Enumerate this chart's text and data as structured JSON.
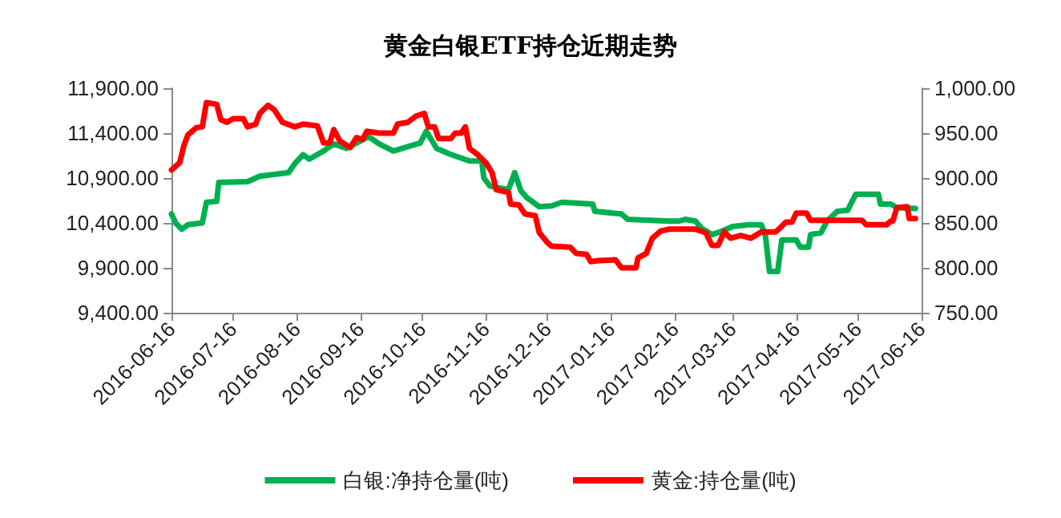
{
  "chart_data": {
    "type": "line",
    "title": "黄金白银ETF持仓近期走势",
    "series": [
      {
        "name": "白银:净持仓量(吨)",
        "color": "#00b050",
        "axis": "y",
        "x": [
          "2016-06-16",
          "2016-06-18",
          "2016-06-21",
          "2016-06-24",
          "2016-07-01",
          "2016-07-03",
          "2016-07-08",
          "2016-07-09",
          "2016-07-23",
          "2016-07-29",
          "2016-08-05",
          "2016-08-12",
          "2016-08-15",
          "2016-08-19",
          "2016-08-22",
          "2016-08-29",
          "2016-09-03",
          "2016-09-09",
          "2016-09-14",
          "2016-09-20",
          "2016-09-25",
          "2016-10-02",
          "2016-10-09",
          "2016-10-15",
          "2016-10-18",
          "2016-10-23",
          "2016-10-29",
          "2016-11-08",
          "2016-11-14",
          "2016-11-15",
          "2016-11-18",
          "2016-11-27",
          "2016-11-30",
          "2016-12-03",
          "2016-12-06",
          "2016-12-12",
          "2016-12-18",
          "2016-12-23",
          "2017-01-07",
          "2017-01-08",
          "2017-01-21",
          "2017-01-24",
          "2017-02-13",
          "2017-02-18",
          "2017-02-21",
          "2017-02-26",
          "2017-03-01",
          "2017-03-06",
          "2017-03-10",
          "2017-03-16",
          "2017-03-24",
          "2017-03-30",
          "2017-04-01",
          "2017-04-03",
          "2017-04-07",
          "2017-04-09",
          "2017-04-16",
          "2017-04-18",
          "2017-04-22",
          "2017-04-23",
          "2017-04-28",
          "2017-05-01",
          "2017-05-06",
          "2017-05-11",
          "2017-05-15",
          "2017-05-26",
          "2017-05-27",
          "2017-06-01",
          "2017-06-04",
          "2017-06-13"
        ],
        "values": [
          10500,
          10400,
          10330,
          10380,
          10400,
          10630,
          10640,
          10850,
          10860,
          10920,
          10940,
          10960,
          11060,
          11160,
          11110,
          11200,
          11280,
          11230,
          11290,
          11360,
          11280,
          11200,
          11250,
          11290,
          11420,
          11230,
          11170,
          11090,
          11090,
          10900,
          10810,
          10770,
          10960,
          10760,
          10680,
          10580,
          10590,
          10630,
          10610,
          10530,
          10500,
          10440,
          10420,
          10420,
          10440,
          10420,
          10340,
          10270,
          10300,
          10360,
          10380,
          10380,
          10260,
          9860,
          9860,
          10210,
          10210,
          10130,
          10130,
          10270,
          10290,
          10420,
          10530,
          10540,
          10720,
          10720,
          10610,
          10610,
          10570,
          10560
        ]
      },
      {
        "name": "黄金:持仓量(吨)",
        "color": "#ff0000",
        "axis": "y2",
        "x": [
          "2016-06-16",
          "2016-06-20",
          "2016-06-22",
          "2016-06-24",
          "2016-06-28",
          "2016-07-01",
          "2016-07-03",
          "2016-07-08",
          "2016-07-10",
          "2016-07-13",
          "2016-07-16",
          "2016-07-21",
          "2016-07-23",
          "2016-07-27",
          "2016-07-29",
          "2016-08-02",
          "2016-08-05",
          "2016-08-09",
          "2016-08-15",
          "2016-08-19",
          "2016-08-26",
          "2016-08-29",
          "2016-09-01",
          "2016-09-03",
          "2016-09-06",
          "2016-09-11",
          "2016-09-14",
          "2016-09-17",
          "2016-09-19",
          "2016-09-25",
          "2016-10-02",
          "2016-10-04",
          "2016-10-09",
          "2016-10-13",
          "2016-10-17",
          "2016-10-19",
          "2016-10-22",
          "2016-10-24",
          "2016-10-30",
          "2016-11-01",
          "2016-11-04",
          "2016-11-06",
          "2016-11-08",
          "2016-11-12",
          "2016-11-16",
          "2016-11-19",
          "2016-11-21",
          "2016-11-27",
          "2016-11-28",
          "2016-12-02",
          "2016-12-05",
          "2016-12-10",
          "2016-12-12",
          "2016-12-16",
          "2016-12-18",
          "2016-12-27",
          "2016-12-30",
          "2017-01-04",
          "2017-01-06",
          "2017-01-10",
          "2017-01-18",
          "2017-01-21",
          "2017-01-28",
          "2017-01-29",
          "2017-02-02",
          "2017-02-05",
          "2017-02-09",
          "2017-02-13",
          "2017-02-26",
          "2017-03-03",
          "2017-03-06",
          "2017-03-09",
          "2017-03-12",
          "2017-03-15",
          "2017-03-20",
          "2017-03-25",
          "2017-03-30",
          "2017-04-06",
          "2017-04-08",
          "2017-04-11",
          "2017-04-14",
          "2017-04-16",
          "2017-04-21",
          "2017-04-23",
          "2017-04-29",
          "2017-05-18",
          "2017-05-20",
          "2017-05-30",
          "2017-06-01",
          "2017-06-02",
          "2017-06-04",
          "2017-06-09",
          "2017-06-10",
          "2017-06-13"
        ],
        "values": [
          909,
          917,
          936,
          948,
          956,
          957,
          984,
          982,
          965,
          962,
          966,
          966,
          957,
          960,
          972,
          981,
          976,
          962,
          957,
          960,
          958,
          939,
          939,
          954,
          941,
          934,
          945,
          943,
          952,
          950,
          950,
          960,
          962,
          969,
          972,
          957,
          957,
          944,
          944,
          950,
          950,
          957,
          933,
          926,
          917,
          906,
          887,
          884,
          871,
          870,
          860,
          858,
          839,
          828,
          824,
          823,
          816,
          815,
          807,
          808,
          809,
          800,
          800,
          811,
          816,
          833,
          841,
          843,
          843,
          839,
          825,
          825,
          840,
          833,
          836,
          833,
          840,
          840,
          844,
          851,
          851,
          861,
          861,
          853,
          853,
          853,
          848,
          848,
          852,
          852,
          867,
          868,
          855,
          855
        ]
      }
    ],
    "xlim": [
      "2016-06-16",
      "2017-06-16"
    ],
    "xticks": [
      "2016-06-16",
      "2016-07-16",
      "2016-08-16",
      "2016-09-16",
      "2016-10-16",
      "2016-11-16",
      "2016-12-16",
      "2017-01-16",
      "2017-02-16",
      "2017-03-16",
      "2017-04-16",
      "2017-05-16",
      "2017-06-16"
    ],
    "ylim": [
      9400,
      11900
    ],
    "yticks": [
      {
        "value": 9400,
        "label": "9,400.00"
      },
      {
        "value": 9900,
        "label": "9,900.00"
      },
      {
        "value": 10400,
        "label": "10,400.00"
      },
      {
        "value": 10900,
        "label": "10,900.00"
      },
      {
        "value": 11400,
        "label": "11,400.00"
      },
      {
        "value": 11900,
        "label": "11,900.00"
      }
    ],
    "y2lim": [
      750,
      1000
    ],
    "y2ticks": [
      {
        "value": 750,
        "label": "750.00"
      },
      {
        "value": 800,
        "label": "800.00"
      },
      {
        "value": 850,
        "label": "850.00"
      },
      {
        "value": 900,
        "label": "900.00"
      },
      {
        "value": 950,
        "label": "950.00"
      },
      {
        "value": 1000,
        "label": "1,000.00"
      }
    ],
    "grid": false,
    "legend": "bottom",
    "marker": "none",
    "line_style": "solid"
  }
}
